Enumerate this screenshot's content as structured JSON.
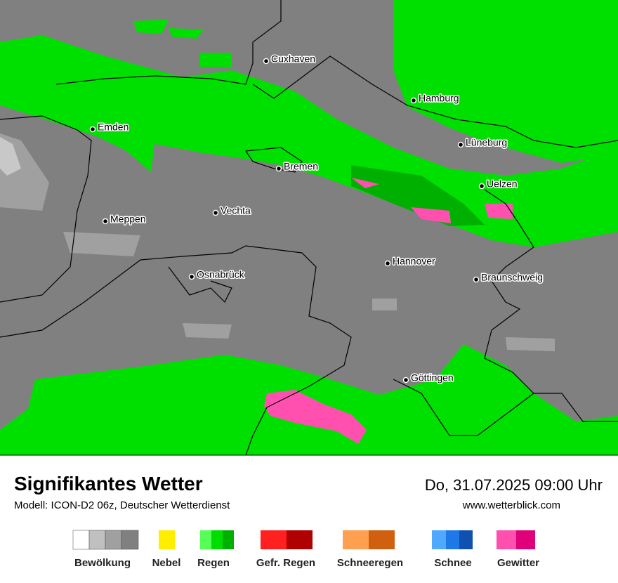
{
  "header": {
    "title": "Signifikantes Wetter",
    "subtitle": "Modell: ICON-D2 06z, Deutscher Wetterdienst",
    "datetime": "Do, 31.07.2025 09:00 Uhr",
    "website": "www.wetterblick.com"
  },
  "cities": [
    "Cuxhaven",
    "Hamburg",
    "Emden",
    "Bremen",
    "Lüneburg",
    "Uelzen",
    "Meppen",
    "Vechta",
    "Osnabrück",
    "Hannover",
    "Braunschweig",
    "Göttingen"
  ],
  "legend": [
    "Bewölkung",
    "Nebel",
    "Regen",
    "Gefr. Regen",
    "Schneeregen",
    "Schnee",
    "Gewitter"
  ]
}
